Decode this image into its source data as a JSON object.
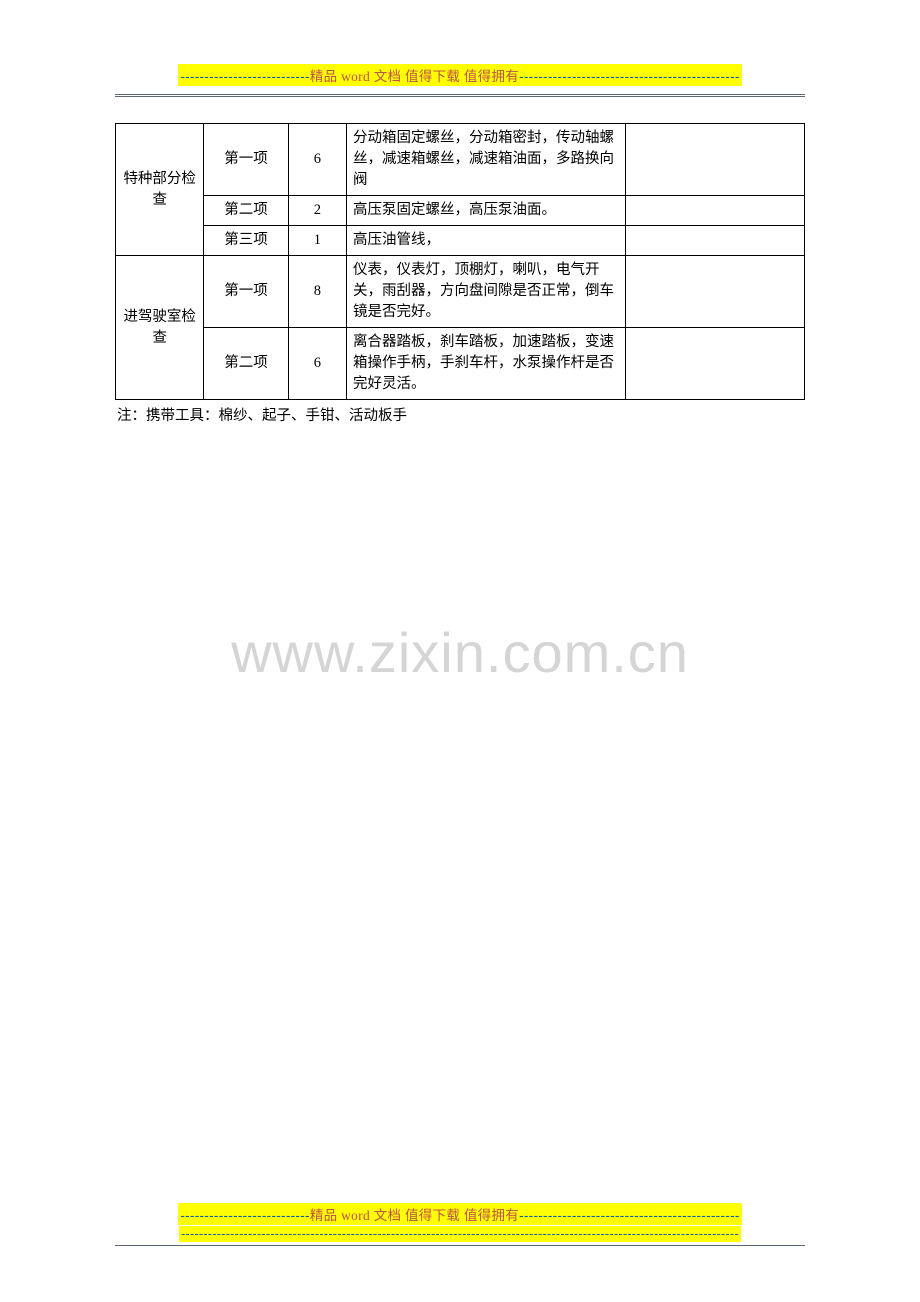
{
  "header": {
    "bg": "#ffff00",
    "dash_color": "#0a5fa8",
    "text_color_dash": "#0a5fa8",
    "text_color_main": "#c0504d",
    "left_dashes": "---------------------------",
    "main": "精品 word 文档  值得下载  值得拥有",
    "right_dashes": "----------------------------------------------"
  },
  "table": {
    "rows": [
      {
        "group": "特种部分检查",
        "rowspan": 3,
        "item": "第一项",
        "count": "6",
        "desc": "分动箱固定螺丝，分动箱密封，传动轴螺丝，减速箱螺丝，减速箱油面，多路换向阀"
      },
      {
        "item": "第二项",
        "count": "2",
        "desc": "高压泵固定螺丝，高压泵油面。"
      },
      {
        "item": "第三项",
        "count": "1",
        "desc": "高压油管线，"
      },
      {
        "group": "进驾驶室检查",
        "rowspan": 2,
        "item": "第一项",
        "count": "8",
        "desc": "仪表，仪表灯，顶棚灯，喇叭，电气开关，雨刮器，方向盘间隙是否正常，倒车镜是否完好。"
      },
      {
        "item": "第二项",
        "count": "6",
        "desc": "离合器踏板，刹车踏板，加速踏板，变速箱操作手柄，手刹车杆，水泵操作杆是否完好灵活。"
      }
    ]
  },
  "note": "注：携带工具：棉纱、起子、手钳、活动板手",
  "watermark": "www.zixin.com.cn",
  "footer": {
    "bg": "#ffff00",
    "left_dashes": "---------------------------",
    "main": "精品 word 文档  值得下载  值得拥有",
    "right_dashes": "----------------------------------------------",
    "line2_bg": "#ffff00",
    "line2_dashes": "-----------------------------------------------------------------------------------------------------------------------------"
  }
}
